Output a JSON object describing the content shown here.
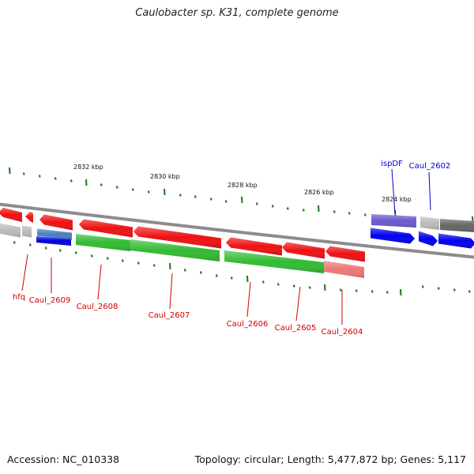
{
  "title": "Caulobacter sp. K31, complete genome",
  "footer": {
    "accession": "Accession: NC_010338",
    "summary": "Topology: circular; Length: 5,477,872 bp; Genes: 5,117"
  },
  "colors": {
    "backbone": "#8c8c8c",
    "tick": "#1a7a1a",
    "forward_label": "#0000cc",
    "reverse_label": "#cc0000"
  },
  "kbp_labels": [
    {
      "text": "2832 kbp"
    },
    {
      "text": "2830 kbp"
    },
    {
      "text": "2828 kbp"
    },
    {
      "text": "2826 kbp"
    },
    {
      "text": "2824 kbp"
    }
  ],
  "genes": [
    {
      "label": "",
      "strand": "reverse",
      "color": "#ee1111"
    },
    {
      "label": "",
      "strand": "reverse",
      "color": "#ee1111"
    },
    {
      "label": "",
      "strand": "reverse",
      "color": "#ee1111"
    },
    {
      "label": "",
      "strand": "reverse",
      "color": "#ee1111"
    },
    {
      "label": "",
      "strand": "reverse",
      "color": "#ee1111"
    },
    {
      "label": "",
      "strand": "reverse",
      "color": "#ee1111"
    },
    {
      "label": "",
      "strand": "reverse",
      "color": "#ee1111"
    },
    {
      "label": "",
      "strand": "reverse",
      "color": "#ee1111"
    },
    {
      "label": "",
      "strand": "forward",
      "color": "#6a5acd"
    },
    {
      "label": "",
      "strand": "forward",
      "color": "#bbbbbb"
    },
    {
      "label": "",
      "strand": "forward",
      "color": "#666666"
    },
    {
      "label": "",
      "strand": "forward",
      "color": "#0000ee"
    },
    {
      "label": "",
      "strand": "forward",
      "color": "#0000ee"
    },
    {
      "label": "",
      "strand": "forward",
      "color": "#0000ee"
    }
  ],
  "annotation_bands": [
    {
      "color": "#bbbbbb"
    },
    {
      "color": "#bbbbbb"
    },
    {
      "color": "#4a7ec0"
    },
    {
      "color": "#0000dd"
    },
    {
      "color": "#33bb33"
    },
    {
      "color": "#33bb33"
    },
    {
      "color": "#33bb33"
    },
    {
      "color": "#ee7777"
    }
  ],
  "gene_labels": [
    {
      "text": "hfq",
      "strand": "reverse"
    },
    {
      "text": "Caul_2609",
      "strand": "reverse"
    },
    {
      "text": "Caul_2608",
      "strand": "reverse"
    },
    {
      "text": "Caul_2607",
      "strand": "reverse"
    },
    {
      "text": "Caul_2606",
      "strand": "reverse"
    },
    {
      "text": "Caul_2605",
      "strand": "reverse"
    },
    {
      "text": "Caul_2604",
      "strand": "reverse"
    },
    {
      "text": "ispDF",
      "strand": "forward"
    },
    {
      "text": "Caul_2602",
      "strand": "forward"
    }
  ]
}
